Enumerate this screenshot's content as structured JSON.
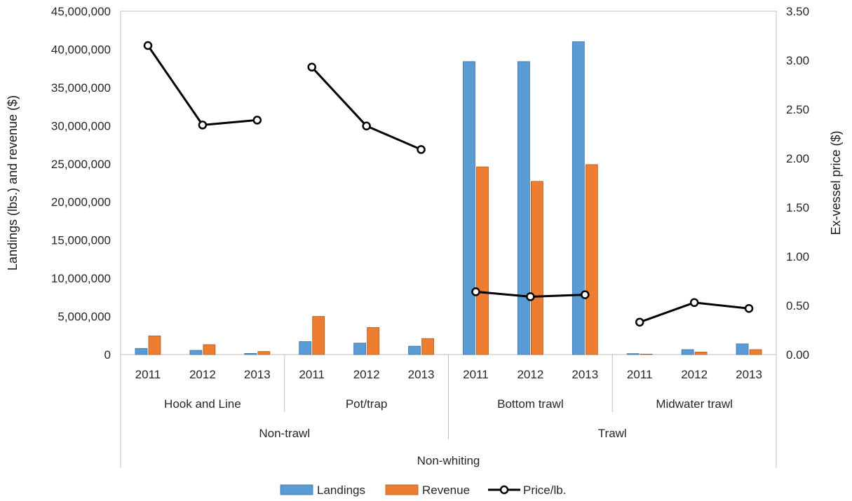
{
  "chart_data": {
    "type": "bar",
    "title": "",
    "ylabel": "Landings (lbs.) and revenue ($)",
    "y2label": "Ex-vessel price ($)",
    "ylim": [
      0,
      45000000
    ],
    "y2lim": [
      0,
      3.5
    ],
    "y_ticks": [
      "0",
      "5,000,000",
      "10,000,000",
      "15,000,000",
      "20,000,000",
      "25,000,000",
      "30,000,000",
      "35,000,000",
      "40,000,000",
      "45,000,000"
    ],
    "y2_ticks": [
      "0.00",
      "0.50",
      "1.00",
      "1.50",
      "2.00",
      "2.50",
      "3.00",
      "3.50"
    ],
    "categories": [
      "2011",
      "2012",
      "2013",
      "2011",
      "2012",
      "2013",
      "2011",
      "2012",
      "2013",
      "2011",
      "2012",
      "2013"
    ],
    "groups_level1": [
      {
        "label": "Hook and Line",
        "span": 3
      },
      {
        "label": "Pot/trap",
        "span": 3
      },
      {
        "label": "Bottom trawl",
        "span": 3
      },
      {
        "label": "Midwater trawl",
        "span": 3
      }
    ],
    "groups_level2": [
      {
        "label": "Non-trawl",
        "span": 6
      },
      {
        "label": "Trawl",
        "span": 6
      }
    ],
    "groups_level3": [
      {
        "label": "Non-whiting",
        "span": 12
      }
    ],
    "series": [
      {
        "name": "Landings",
        "type": "bar",
        "axis": "left",
        "color": "#5b9bd5",
        "values": [
          800000,
          550000,
          150000,
          1700000,
          1500000,
          1100000,
          38400000,
          38400000,
          41000000,
          120000,
          650000,
          1400000
        ]
      },
      {
        "name": "Revenue",
        "type": "bar",
        "axis": "left",
        "color": "#ed7d31",
        "values": [
          2450000,
          1300000,
          400000,
          5000000,
          3550000,
          2100000,
          24600000,
          22700000,
          24900000,
          60000,
          330000,
          650000
        ]
      },
      {
        "name": "Price/lb.",
        "type": "line",
        "axis": "right",
        "color": "#000000",
        "values": [
          3.15,
          2.34,
          2.39,
          2.93,
          2.33,
          2.09,
          0.64,
          0.59,
          0.61,
          0.33,
          0.53,
          0.47
        ],
        "segments": [
          [
            0,
            2
          ],
          [
            3,
            5
          ],
          [
            6,
            8
          ],
          [
            9,
            11
          ]
        ]
      }
    ],
    "grid": false,
    "legend_position": "bottom"
  }
}
